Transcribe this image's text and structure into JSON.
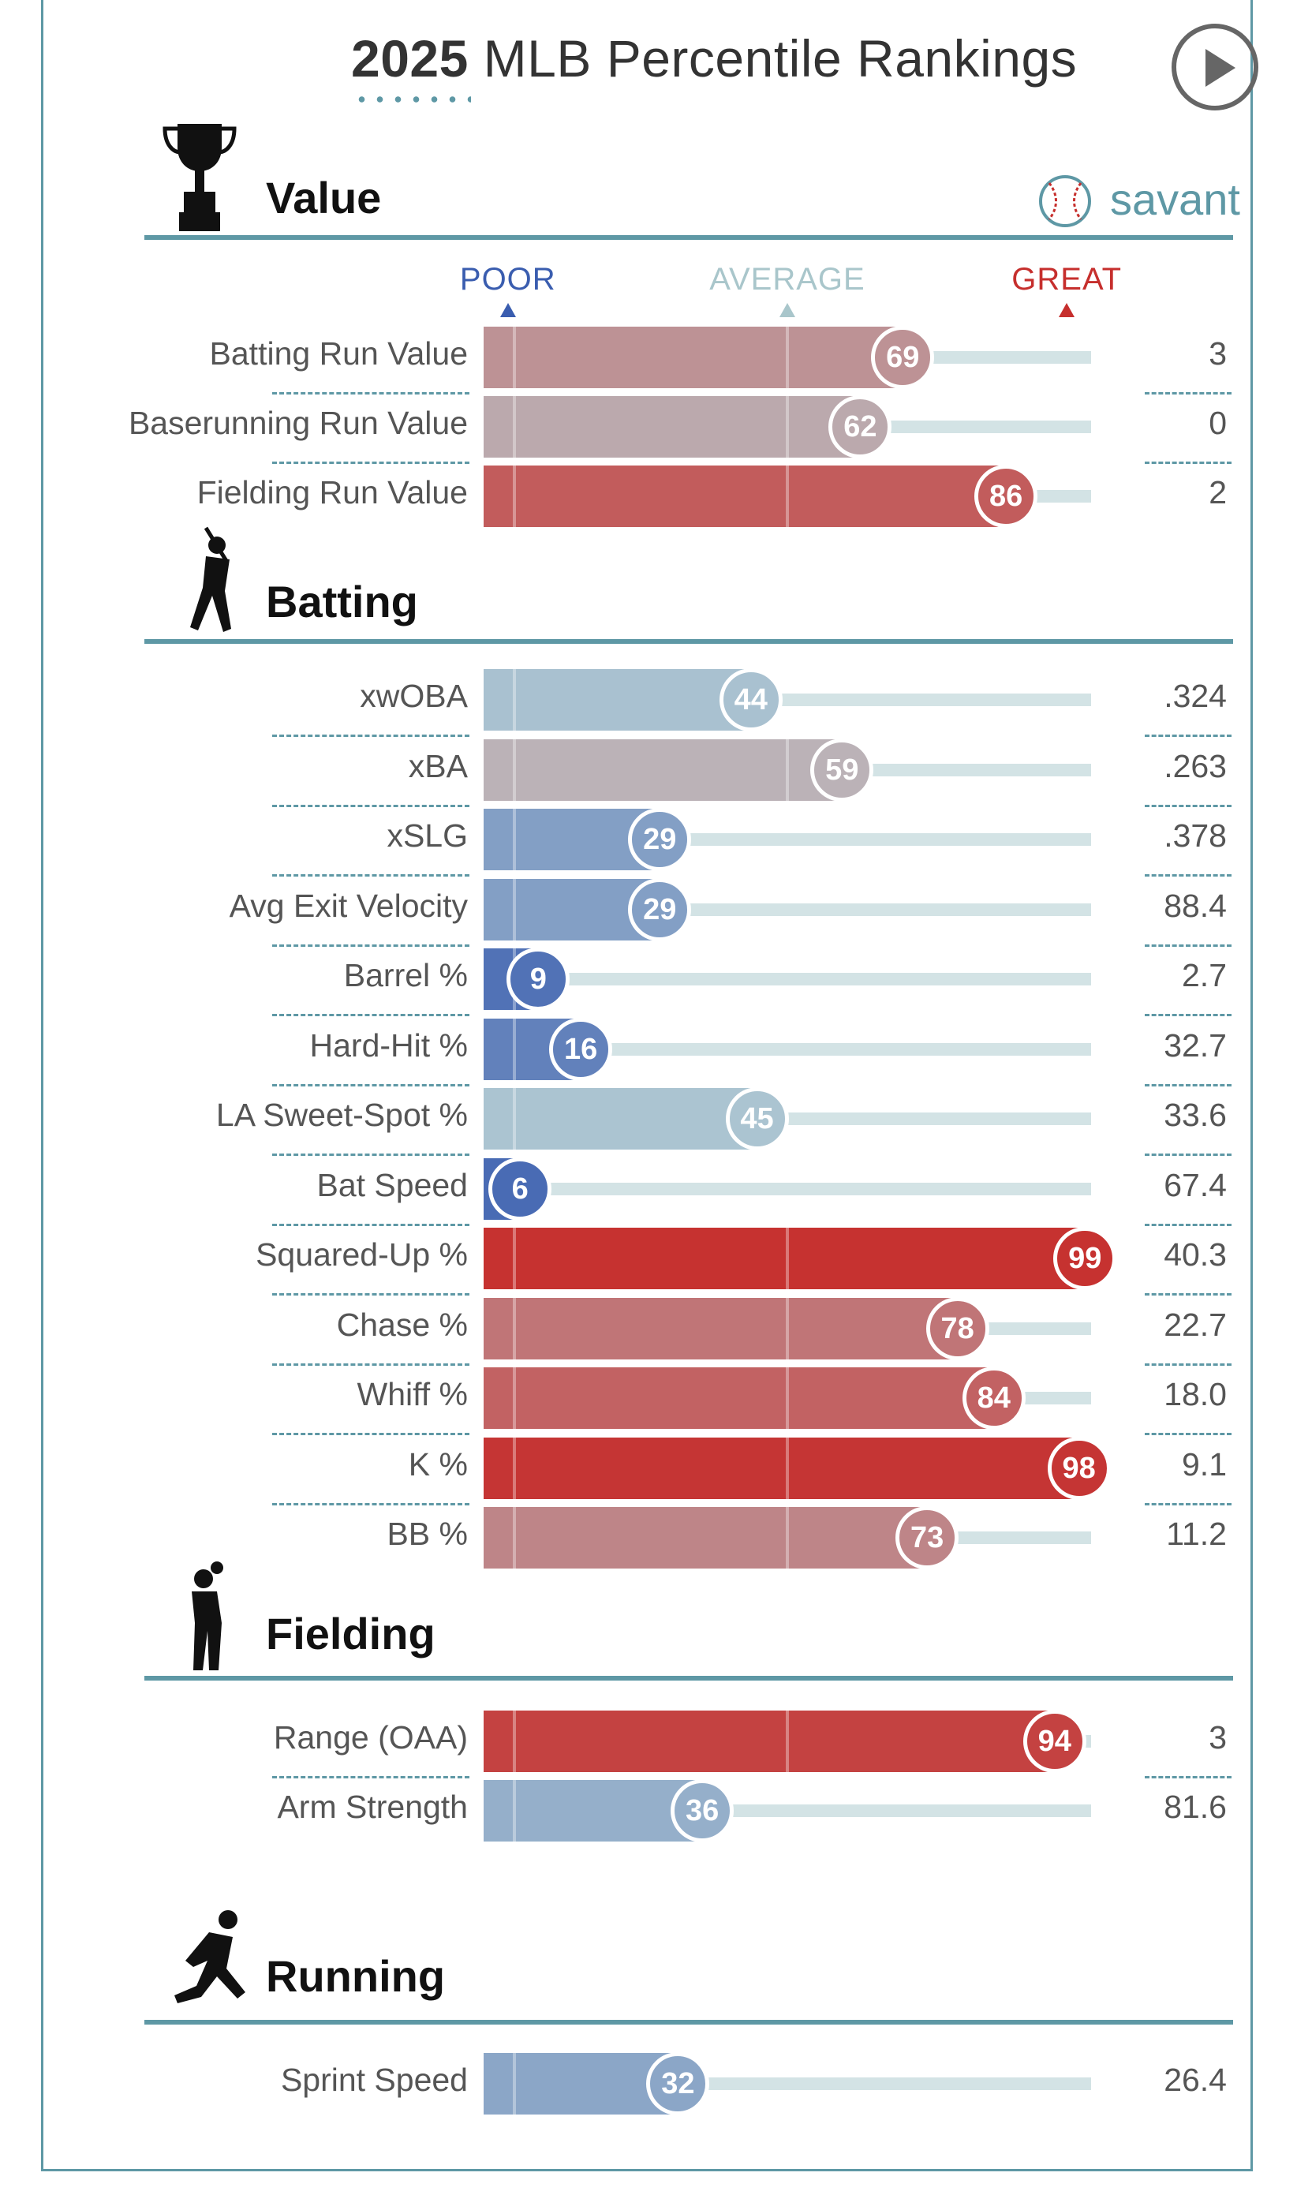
{
  "header": {
    "year": "2025",
    "title_rest": " MLB Percentile Rankings"
  },
  "brand": "savant",
  "scale": {
    "poor": "POOR",
    "average": "AVERAGE",
    "great": "GREAT"
  },
  "colors": {
    "poor": "#3a5daf",
    "average": "#b8cfd5",
    "great": "#c62f2d",
    "accent": "#5e98a5"
  },
  "sections": [
    {
      "title": "Value",
      "icon": "trophy-icon",
      "rows": [
        {
          "label": "Batting Run Value",
          "pct": 69,
          "value": "3"
        },
        {
          "label": "Baserunning Run Value",
          "pct": 62,
          "value": "0"
        },
        {
          "label": "Fielding Run Value",
          "pct": 86,
          "value": "2"
        }
      ]
    },
    {
      "title": "Batting",
      "icon": "batter-icon",
      "rows": [
        {
          "label": "xwOBA",
          "pct": 44,
          "value": ".324"
        },
        {
          "label": "xBA",
          "pct": 59,
          "value": ".263"
        },
        {
          "label": "xSLG",
          "pct": 29,
          "value": ".378"
        },
        {
          "label": "Avg Exit Velocity",
          "pct": 29,
          "value": "88.4"
        },
        {
          "label": "Barrel %",
          "pct": 9,
          "value": "2.7"
        },
        {
          "label": "Hard-Hit %",
          "pct": 16,
          "value": "32.7"
        },
        {
          "label": "LA Sweet-Spot %",
          "pct": 45,
          "value": "33.6"
        },
        {
          "label": "Bat Speed",
          "pct": 6,
          "value": "67.4"
        },
        {
          "label": "Squared-Up %",
          "pct": 99,
          "value": "40.3"
        },
        {
          "label": "Chase %",
          "pct": 78,
          "value": "22.7"
        },
        {
          "label": "Whiff %",
          "pct": 84,
          "value": "18.0"
        },
        {
          "label": "K %",
          "pct": 98,
          "value": "9.1"
        },
        {
          "label": "BB %",
          "pct": 73,
          "value": "11.2"
        }
      ]
    },
    {
      "title": "Fielding",
      "icon": "fielder-icon",
      "rows": [
        {
          "label": "Range (OAA)",
          "pct": 94,
          "value": "3"
        },
        {
          "label": "Arm Strength",
          "pct": 36,
          "value": "81.6"
        }
      ]
    },
    {
      "title": "Running",
      "icon": "runner-icon",
      "rows": [
        {
          "label": "Sprint Speed",
          "pct": 32,
          "value": "26.4"
        }
      ]
    }
  ],
  "chart_data": {
    "type": "bar",
    "title": "2025 MLB Percentile Rankings",
    "xlim": [
      0,
      100
    ],
    "categories": [
      "Batting Run Value",
      "Baserunning Run Value",
      "Fielding Run Value",
      "xwOBA",
      "xBA",
      "xSLG",
      "Avg Exit Velocity",
      "Barrel %",
      "Hard-Hit %",
      "LA Sweet-Spot %",
      "Bat Speed",
      "Squared-Up %",
      "Chase %",
      "Whiff %",
      "K %",
      "BB %",
      "Range (OAA)",
      "Arm Strength",
      "Sprint Speed"
    ],
    "values": [
      69,
      62,
      86,
      44,
      59,
      29,
      29,
      9,
      16,
      45,
      6,
      99,
      78,
      84,
      98,
      73,
      94,
      36,
      32
    ],
    "stat_values": [
      "3",
      "0",
      "2",
      ".324",
      ".263",
      ".378",
      "88.4",
      "2.7",
      "32.7",
      "33.6",
      "67.4",
      "40.3",
      "22.7",
      "18.0",
      "9.1",
      "11.2",
      "3",
      "81.6",
      "26.4"
    ]
  }
}
